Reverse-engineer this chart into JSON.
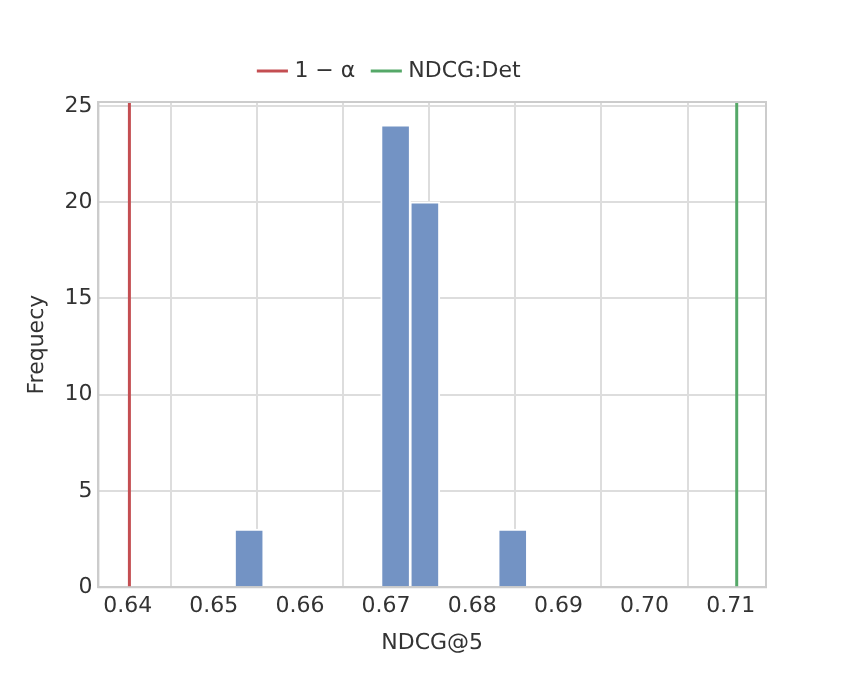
{
  "chart_data": {
    "type": "histogram",
    "xlabel": "NDCG@5",
    "ylabel": "Frequecy",
    "bins": [
      0.6524,
      0.6558,
      0.6592,
      0.6626,
      0.666,
      0.6694,
      0.6728,
      0.6762,
      0.6796,
      0.683,
      0.6864
    ],
    "values": [
      3,
      0,
      0,
      0,
      0,
      24,
      20,
      0,
      0,
      3
    ],
    "color": "#7393c4",
    "xlim": [
      0.6366,
      0.7141
    ],
    "xticks": [
      0.64,
      0.65,
      0.66,
      0.67,
      0.68,
      0.69,
      {
        "value": 0.7,
        "label": "0.70"
      },
      0.71
    ],
    "ylim": [
      0,
      25.2
    ],
    "yticks": [
      0,
      5,
      10,
      15,
      20,
      25
    ],
    "ref_lines": [
      {
        "axis": "x",
        "value": 0.6402,
        "label": "1 − α",
        "color": "#c44e52"
      },
      {
        "axis": "x",
        "value": 0.7107,
        "label": "NDCG:Det",
        "color": "#55a868"
      }
    ],
    "grid": true,
    "legend": "top"
  }
}
